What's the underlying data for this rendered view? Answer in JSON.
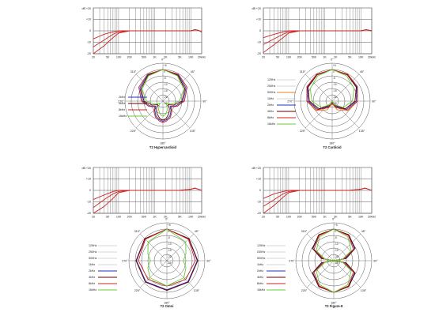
{
  "freq_axis": {
    "ylabel": "dB +20",
    "y_ticks": [
      "+10",
      "0",
      "-10",
      "-20"
    ],
    "y_values": [
      10,
      0,
      -10,
      -20
    ],
    "x_ticks": [
      "20",
      "50",
      "100",
      "200",
      "500",
      "1K",
      "2K",
      "5K",
      "10K",
      "20kHz"
    ],
    "x_values": [
      20,
      50,
      100,
      200,
      500,
      1000,
      2000,
      5000,
      10000,
      20000
    ],
    "ylim": [
      -20,
      20
    ],
    "xlim": [
      20,
      20000
    ],
    "scale": "log"
  },
  "polar_axis": {
    "angle_labels": [
      "0°",
      "45°",
      "90°",
      "135°",
      "180°",
      "225°",
      "270°",
      "315°"
    ],
    "angles": [
      0,
      45,
      90,
      135,
      180,
      225,
      270,
      315
    ],
    "db_labels": [
      "+5",
      "0",
      "-5",
      "-10",
      "-15",
      "-20",
      "-25"
    ]
  },
  "legend_labels": [
    "125Hz",
    "250Hz",
    "500Hz",
    "1kHz",
    "2kHz",
    "4kHz",
    "8kHz",
    "16kHz"
  ],
  "colors": {
    "grid": "#555555",
    "red": "#cc2222",
    "orange": "#e08030",
    "blue": "#2233bb",
    "darkred": "#660000",
    "green": "#66cc33",
    "grey": "#999999"
  },
  "chart_data": [
    {
      "type": "line",
      "title": "T2 Hypercardioid",
      "xlabel": "",
      "ylabel": "dB",
      "scale": "log",
      "series": [
        {
          "x": [
            20,
            40,
            70,
            100,
            200,
            1000,
            5000,
            10000,
            13000,
            16000,
            20000
          ],
          "y": [
            -7,
            -3,
            -1,
            0,
            0,
            0,
            0,
            0,
            1,
            0.5,
            -1
          ]
        },
        {
          "x": [
            20,
            40,
            70,
            100,
            200,
            1000,
            5000,
            10000,
            13000,
            16000,
            20000
          ],
          "y": [
            -14,
            -8,
            -3,
            -1,
            0,
            0,
            0,
            0,
            1,
            0.5,
            -1
          ]
        },
        {
          "x": [
            20,
            40,
            70,
            100,
            200,
            1000,
            5000,
            10000,
            13000,
            16000,
            20000
          ],
          "y": [
            -20,
            -13,
            -6,
            -2,
            0,
            0,
            0,
            0,
            1,
            0.5,
            -1
          ]
        }
      ],
      "polar": {
        "legend_visible": [
          "2kHz",
          "4kHz",
          "8kHz",
          "16kHz"
        ],
        "patterns": [
          {
            "label": "2kHz",
            "color": "blue",
            "angles": [
              0,
              30,
              60,
              90,
              110,
              125,
              140,
              155,
              170,
              180
            ],
            "db": [
              0,
              -1,
              -4,
              -9,
              -14,
              -18,
              -15,
              -12,
              -10,
              -9
            ]
          },
          {
            "label": "4kHz",
            "color": "darkred",
            "angles": [
              0,
              30,
              60,
              90,
              110,
              125,
              140,
              155,
              170,
              180
            ],
            "db": [
              0,
              -1.5,
              -5,
              -10,
              -16,
              -20,
              -17,
              -14,
              -11,
              -10
            ]
          },
          {
            "label": "8kHz",
            "color": "red",
            "angles": [
              0,
              30,
              60,
              90,
              110,
              125,
              140,
              155,
              170,
              180
            ],
            "db": [
              0,
              -0.5,
              -3,
              -8,
              -13,
              -17,
              -14,
              -11,
              -9,
              -8
            ]
          },
          {
            "label": "16kHz",
            "color": "green",
            "angles": [
              0,
              30,
              60,
              90,
              110,
              125,
              140,
              155,
              170,
              180
            ],
            "db": [
              0,
              -2,
              -6,
              -12,
              -18,
              -22,
              -20,
              -17,
              -14,
              -13
            ]
          }
        ]
      }
    },
    {
      "type": "line",
      "title": "T2 Cardioid",
      "xlabel": "",
      "ylabel": "dB",
      "scale": "log",
      "series": [
        {
          "x": [
            20,
            40,
            70,
            100,
            200,
            1000,
            5000,
            10000,
            14000,
            20000
          ],
          "y": [
            -6,
            -3,
            -1,
            0,
            0,
            0,
            0,
            0,
            1,
            0
          ]
        },
        {
          "x": [
            20,
            40,
            70,
            100,
            200,
            1000,
            5000,
            10000,
            14000,
            20000
          ],
          "y": [
            -12,
            -7,
            -3,
            -1,
            0,
            0,
            0,
            0,
            1,
            0
          ]
        },
        {
          "x": [
            20,
            40,
            70,
            100,
            200,
            1000,
            5000,
            10000,
            14000,
            20000
          ],
          "y": [
            -19,
            -12,
            -6,
            -2,
            0,
            0,
            0,
            0,
            1,
            0
          ]
        }
      ],
      "polar": {
        "legend_visible": [
          "125Hz",
          "250Hz",
          "500Hz",
          "1kHz",
          "2kHz",
          "4kHz",
          "8kHz",
          "16kHz"
        ],
        "patterns": [
          {
            "label": "500Hz",
            "color": "orange",
            "angles": [
              0,
              30,
              60,
              90,
              120,
              150,
              165,
              180
            ],
            "db": [
              0,
              -0.5,
              -2,
              -5,
              -10,
              -17,
              -22,
              -25
            ]
          },
          {
            "label": "2kHz",
            "color": "blue",
            "angles": [
              0,
              30,
              60,
              90,
              120,
              150,
              165,
              180
            ],
            "db": [
              0,
              -1,
              -2.5,
              -6,
              -12,
              -20,
              -24,
              -22
            ]
          },
          {
            "label": "4kHz",
            "color": "darkred",
            "angles": [
              0,
              30,
              60,
              90,
              120,
              150,
              165,
              180
            ],
            "db": [
              0,
              -1,
              -3,
              -7,
              -13,
              -21,
              -24,
              -23
            ]
          },
          {
            "label": "8kHz",
            "color": "red",
            "angles": [
              0,
              30,
              60,
              90,
              120,
              150,
              165,
              180
            ],
            "db": [
              0,
              -0.5,
              -2,
              -5,
              -11,
              -19,
              -23,
              -24
            ]
          },
          {
            "label": "16kHz",
            "color": "green",
            "angles": [
              0,
              30,
              60,
              90,
              120,
              150,
              165,
              180
            ],
            "db": [
              0,
              -2,
              -5,
              -9,
              -15,
              -22,
              -25,
              -25
            ]
          }
        ]
      }
    },
    {
      "type": "line",
      "title": "T2 Omni",
      "xlabel": "",
      "ylabel": "dB",
      "scale": "log",
      "series": [
        {
          "x": [
            20,
            40,
            70,
            100,
            200,
            1000,
            5000,
            10000,
            13000,
            20000
          ],
          "y": [
            -8,
            -4,
            -1,
            0,
            0,
            0,
            0,
            1,
            2,
            0
          ]
        },
        {
          "x": [
            20,
            40,
            70,
            100,
            200,
            1000,
            5000,
            10000,
            13000,
            20000
          ],
          "y": [
            -15,
            -8,
            -3,
            -1,
            0,
            0,
            0,
            1,
            2,
            0
          ]
        },
        {
          "x": [
            20,
            40,
            70,
            100,
            200,
            1000,
            5000,
            10000,
            13000,
            20000
          ],
          "y": [
            -20,
            -14,
            -7,
            -2,
            0,
            0,
            0,
            1,
            2,
            0
          ]
        }
      ],
      "polar": {
        "legend_visible": [
          "125Hz",
          "250Hz",
          "500Hz",
          "1kHz",
          "2kHz",
          "4kHz",
          "8kHz",
          "16kHz"
        ],
        "patterns": [
          {
            "label": "2kHz",
            "color": "blue",
            "angles": [
              0,
              45,
              90,
              135,
              180
            ],
            "db": [
              0,
              -0.5,
              -1,
              -1.5,
              -2
            ]
          },
          {
            "label": "4kHz",
            "color": "darkred",
            "angles": [
              0,
              45,
              90,
              135,
              180
            ],
            "db": [
              0,
              -0.3,
              -0.6,
              -1,
              -1.5
            ]
          },
          {
            "label": "8kHz",
            "color": "red",
            "angles": [
              0,
              45,
              90,
              135,
              180
            ],
            "db": [
              0,
              -1,
              -2.5,
              -4,
              -5
            ]
          },
          {
            "label": "16kHz",
            "color": "green",
            "angles": [
              0,
              45,
              70,
              90,
              110,
              135,
              180
            ],
            "db": [
              0,
              -4,
              -9,
              -12,
              -9,
              -6,
              -5
            ]
          }
        ]
      }
    },
    {
      "type": "line",
      "title": "T2 Figure-8",
      "xlabel": "",
      "ylabel": "dB",
      "scale": "log",
      "series": [
        {
          "x": [
            20,
            40,
            70,
            100,
            200,
            1000,
            5000,
            10000,
            13000,
            20000
          ],
          "y": [
            -7,
            -3,
            -1,
            0,
            0,
            0,
            0,
            1,
            2,
            0
          ]
        },
        {
          "x": [
            20,
            40,
            70,
            100,
            200,
            1000,
            5000,
            10000,
            13000,
            20000
          ],
          "y": [
            -14,
            -8,
            -3,
            -1,
            0,
            0,
            0,
            1,
            2,
            0
          ]
        },
        {
          "x": [
            20,
            40,
            70,
            100,
            200,
            1000,
            5000,
            10000,
            13000,
            20000
          ],
          "y": [
            -20,
            -13,
            -6,
            -2,
            0,
            0,
            0,
            1,
            2,
            0
          ]
        }
      ],
      "polar": {
        "legend_visible": [
          "125Hz",
          "250Hz",
          "500Hz",
          "1kHz",
          "2kHz",
          "4kHz",
          "8kHz",
          "16kHz"
        ],
        "patterns": [
          {
            "label": "2kHz",
            "color": "blue",
            "angles": [
              0,
              30,
              60,
              80,
              90,
              100,
              120,
              150,
              180
            ],
            "db": [
              0,
              -1.5,
              -6,
              -16,
              -25,
              -16,
              -6,
              -1.5,
              0
            ]
          },
          {
            "label": "4kHz",
            "color": "darkred",
            "angles": [
              0,
              30,
              60,
              80,
              90,
              100,
              120,
              150,
              180
            ],
            "db": [
              0,
              -1.3,
              -5.5,
              -15,
              -25,
              -15,
              -5.5,
              -1.3,
              0
            ]
          },
          {
            "label": "8kHz",
            "color": "red",
            "angles": [
              0,
              30,
              60,
              80,
              90,
              100,
              120,
              150,
              180
            ],
            "db": [
              0,
              -2,
              -7,
              -17,
              -25,
              -17,
              -7,
              -2,
              0
            ]
          },
          {
            "label": "16kHz",
            "color": "green",
            "angles": [
              0,
              30,
              60,
              80,
              90,
              100,
              120,
              150,
              180
            ],
            "db": [
              0,
              -3,
              -9,
              -18,
              -25,
              -18,
              -9,
              -3,
              0
            ]
          }
        ]
      }
    }
  ]
}
